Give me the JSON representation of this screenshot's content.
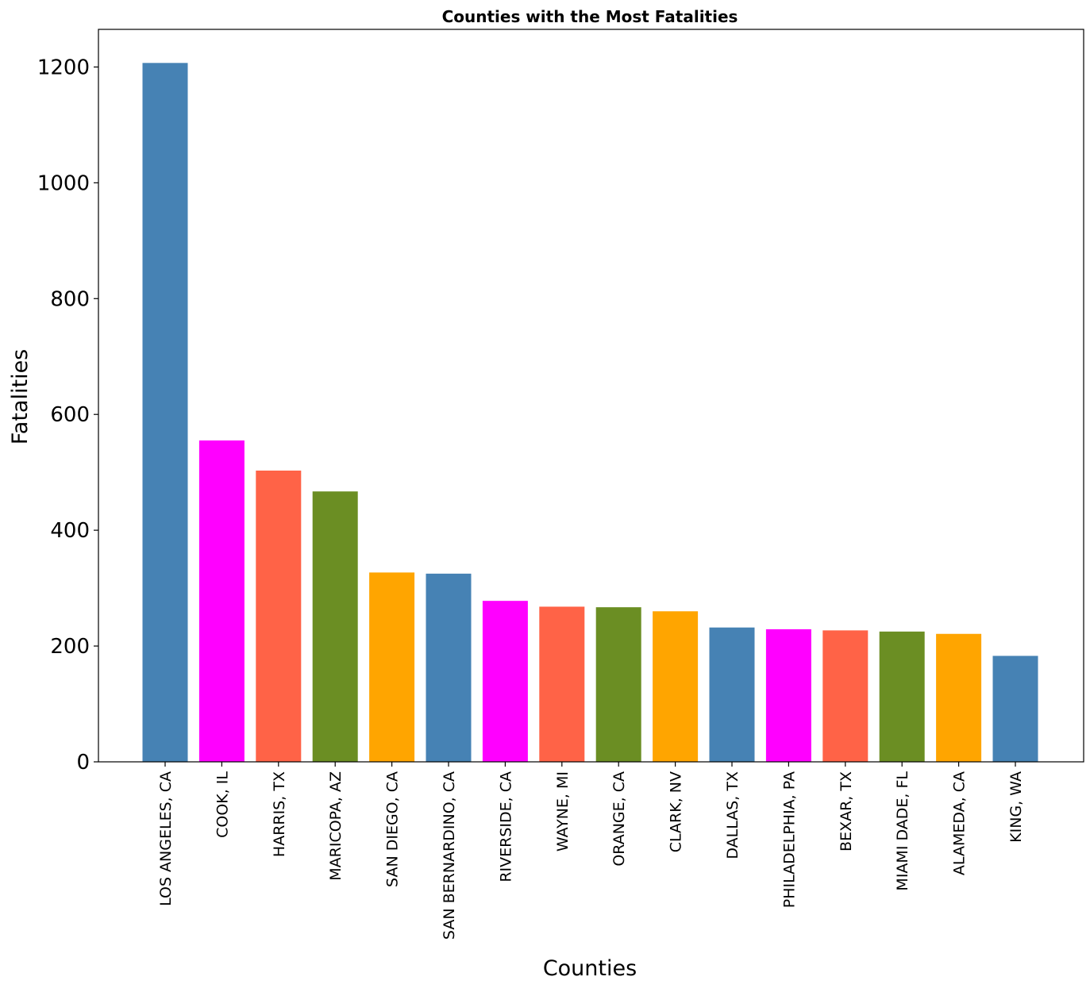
{
  "chart_data": {
    "type": "bar",
    "title": "Counties with the Most Fatalities",
    "xlabel": "Counties",
    "ylabel": "Fatalities",
    "ylim": [
      0,
      1265
    ],
    "yticks": [
      0,
      200,
      400,
      600,
      800,
      1000,
      1200
    ],
    "grid": false,
    "legend": "none",
    "categories": [
      "LOS ANGELES, CA",
      "COOK, IL",
      "HARRIS, TX",
      "MARICOPA, AZ",
      "SAN DIEGO, CA",
      "SAN BERNARDINO, CA",
      "RIVERSIDE, CA",
      "WAYNE, MI",
      "ORANGE, CA",
      "CLARK, NV",
      "DALLAS, TX",
      "PHILADELPHIA, PA",
      "BEXAR, TX",
      "MIAMI DADE, FL",
      "ALAMEDA, CA",
      "KING, WA"
    ],
    "values": [
      1207,
      555,
      503,
      467,
      327,
      325,
      278,
      268,
      267,
      260,
      232,
      229,
      227,
      225,
      221,
      183
    ],
    "colors": [
      "#4682b4",
      "#ff00ff",
      "#ff6347",
      "#6b8e23",
      "#ffa500",
      "#4682b4",
      "#ff00ff",
      "#ff6347",
      "#6b8e23",
      "#ffa500",
      "#4682b4",
      "#ff00ff",
      "#ff6347",
      "#6b8e23",
      "#ffa500",
      "#4682b4"
    ]
  }
}
